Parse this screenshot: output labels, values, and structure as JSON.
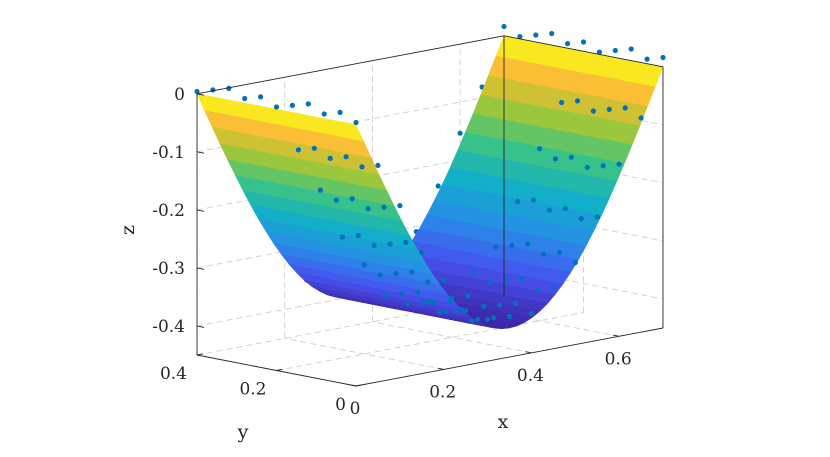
{
  "chart_data": {
    "type": "surface3d",
    "title": "",
    "xlabel": "x",
    "ylabel": "y",
    "zlabel": "z",
    "xlim": [
      0,
      0.7
    ],
    "ylim": [
      0,
      0.4
    ],
    "zlim": [
      -0.45,
      0
    ],
    "grid": true,
    "box": true,
    "xticks": [
      0,
      0.2,
      0.4,
      0.6
    ],
    "xtick_labels": [
      "0",
      "0.2",
      "0.4",
      "0.6"
    ],
    "yticks": [
      0,
      0.2,
      0.4
    ],
    "ytick_labels": [
      "0",
      "0.2",
      "0.4"
    ],
    "zticks": [
      -0.4,
      -0.3,
      -0.2,
      -0.1,
      0
    ],
    "ztick_labels": [
      "-0.4",
      "-0.3",
      "-0.2",
      "-0.1",
      "0"
    ],
    "colormap": "parula",
    "surface": {
      "description_values": "Half-cylinder trough; z = -0.4*sin(pi*t), x from 0 to 0.7 across the trough, y from 0 to 0.4 along its axis",
      "t_samples": 40,
      "y_samples": 12
    },
    "scatter_series": {
      "color": "#0072BD",
      "marker": "dot",
      "count_approx": 150
    }
  }
}
